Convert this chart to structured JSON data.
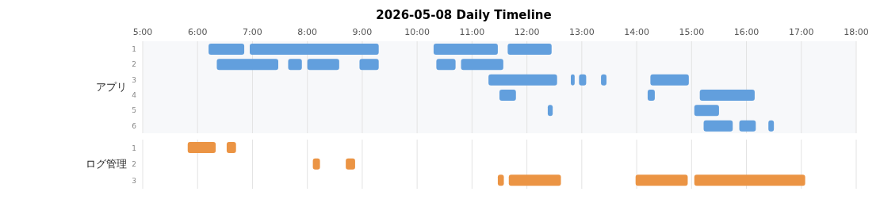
{
  "chart_data": [
    {
      "type": "bar",
      "orientation": "horizontal",
      "title": "2026-05-08 Daily Timeline",
      "ylabel": "アプリ",
      "categories": [
        "1",
        "2",
        "3",
        "4",
        "5",
        "6"
      ],
      "xlim": [
        5,
        18
      ],
      "xticks": [
        {
          "value": 5,
          "label": "5:00"
        },
        {
          "value": 6,
          "label": "6:00"
        },
        {
          "value": 7,
          "label": "7:00"
        },
        {
          "value": 8,
          "label": "8:00"
        },
        {
          "value": 9,
          "label": "9:00"
        },
        {
          "value": 10,
          "label": "10:00"
        },
        {
          "value": 11,
          "label": "11:00"
        },
        {
          "value": 12,
          "label": "12:00"
        },
        {
          "value": 13,
          "label": "13:00"
        },
        {
          "value": 14,
          "label": "14:00"
        },
        {
          "value": 15,
          "label": "15:00"
        },
        {
          "value": 16,
          "label": "16:00"
        },
        {
          "value": 17,
          "label": "17:00"
        },
        {
          "value": 18,
          "label": "18:00"
        }
      ],
      "grid": "x",
      "series": [
        {
          "color": "#629fdd",
          "base": [
            6.2,
            6.35,
            11.3,
            11.5,
            12.38,
            15.22
          ],
          "values": [
            0.65,
            1.12,
            1.25,
            0.3,
            0.09,
            0.53
          ]
        },
        {
          "color": "#629fdd",
          "base": [
            6.95,
            7.65,
            12.8,
            14.2,
            15.05,
            15.87
          ],
          "values": [
            2.35,
            0.25,
            0.07,
            0.13,
            0.45,
            0.3
          ]
        },
        {
          "color": "#629fdd",
          "base": [
            10.3,
            8.0,
            12.95,
            15.15,
            null,
            16.4
          ],
          "values": [
            1.17,
            0.58,
            0.13,
            1.0,
            null,
            0.1
          ]
        },
        {
          "color": "#629fdd",
          "base": [
            11.65,
            8.95,
            13.35,
            null,
            null,
            null
          ],
          "values": [
            0.8,
            0.35,
            0.1,
            null,
            null,
            null
          ]
        },
        {
          "color": "#629fdd",
          "base": [
            null,
            10.35,
            14.25,
            null,
            null,
            null
          ],
          "values": [
            null,
            0.35,
            0.7,
            null,
            null,
            null
          ]
        },
        {
          "color": "#629fdd",
          "base": [
            null,
            10.8,
            null,
            null,
            null,
            null
          ],
          "values": [
            null,
            0.77,
            null,
            null,
            null,
            null
          ]
        }
      ]
    },
    {
      "type": "bar",
      "orientation": "horizontal",
      "ylabel": "ログ管理",
      "categories": [
        "1",
        "2",
        "3"
      ],
      "tick_labels": "y",
      "xlim": [
        5,
        18
      ],
      "xticks": [
        5,
        6,
        7,
        8,
        9,
        10,
        11,
        12,
        13,
        14,
        15,
        16,
        17,
        18
      ],
      "grid": "x",
      "series": [
        {
          "color": "#eb9444",
          "base": [
            5.82,
            8.1,
            11.47
          ],
          "values": [
            0.51,
            0.13,
            0.11
          ]
        },
        {
          "color": "#eb9444",
          "base": [
            6.53,
            8.7,
            11.67
          ],
          "values": [
            0.17,
            0.17,
            0.95
          ]
        },
        {
          "color": "#eb9444",
          "base": [
            null,
            null,
            13.98
          ],
          "values": [
            null,
            null,
            0.95
          ]
        },
        {
          "color": "#eb9444",
          "base": [
            null,
            null,
            15.05
          ],
          "values": [
            null,
            null,
            2.02
          ]
        }
      ]
    }
  ]
}
